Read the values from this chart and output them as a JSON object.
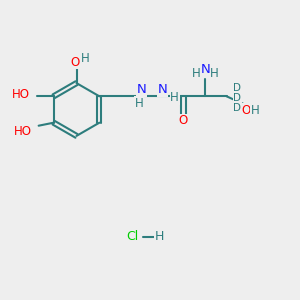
{
  "background_color": "#eeeeee",
  "bond_color": "#2d7d7d",
  "bond_width": 1.5,
  "atom_colors": {
    "O": "#ff0000",
    "N": "#1a1aff",
    "C": "#2d7d7d",
    "H": "#2d7d7d",
    "D": "#2d7d7d",
    "Cl": "#00cc00",
    "HCl_H": "#2d7d7d"
  },
  "fontsize": 8.5,
  "hcl_fontsize": 9,
  "xlim": [
    0,
    10
  ],
  "ylim": [
    0,
    10
  ]
}
